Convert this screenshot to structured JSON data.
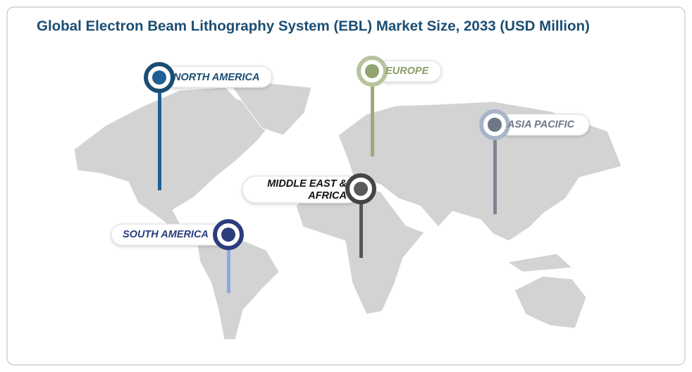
{
  "header": {
    "title": "Global Electron Beam Lithography System (EBL) Market Size, 2033 (USD Million)"
  },
  "regions": [
    {
      "lines": [
        "NORTH AMERICA"
      ]
    },
    {
      "lines": [
        "EUROPE"
      ]
    },
    {
      "lines": [
        "ASIA PACIFIC"
      ]
    },
    {
      "lines": [
        "MIDDLE EAST &",
        "AFRICA"
      ]
    },
    {
      "lines": [
        "SOUTH AMERICA"
      ]
    }
  ]
}
